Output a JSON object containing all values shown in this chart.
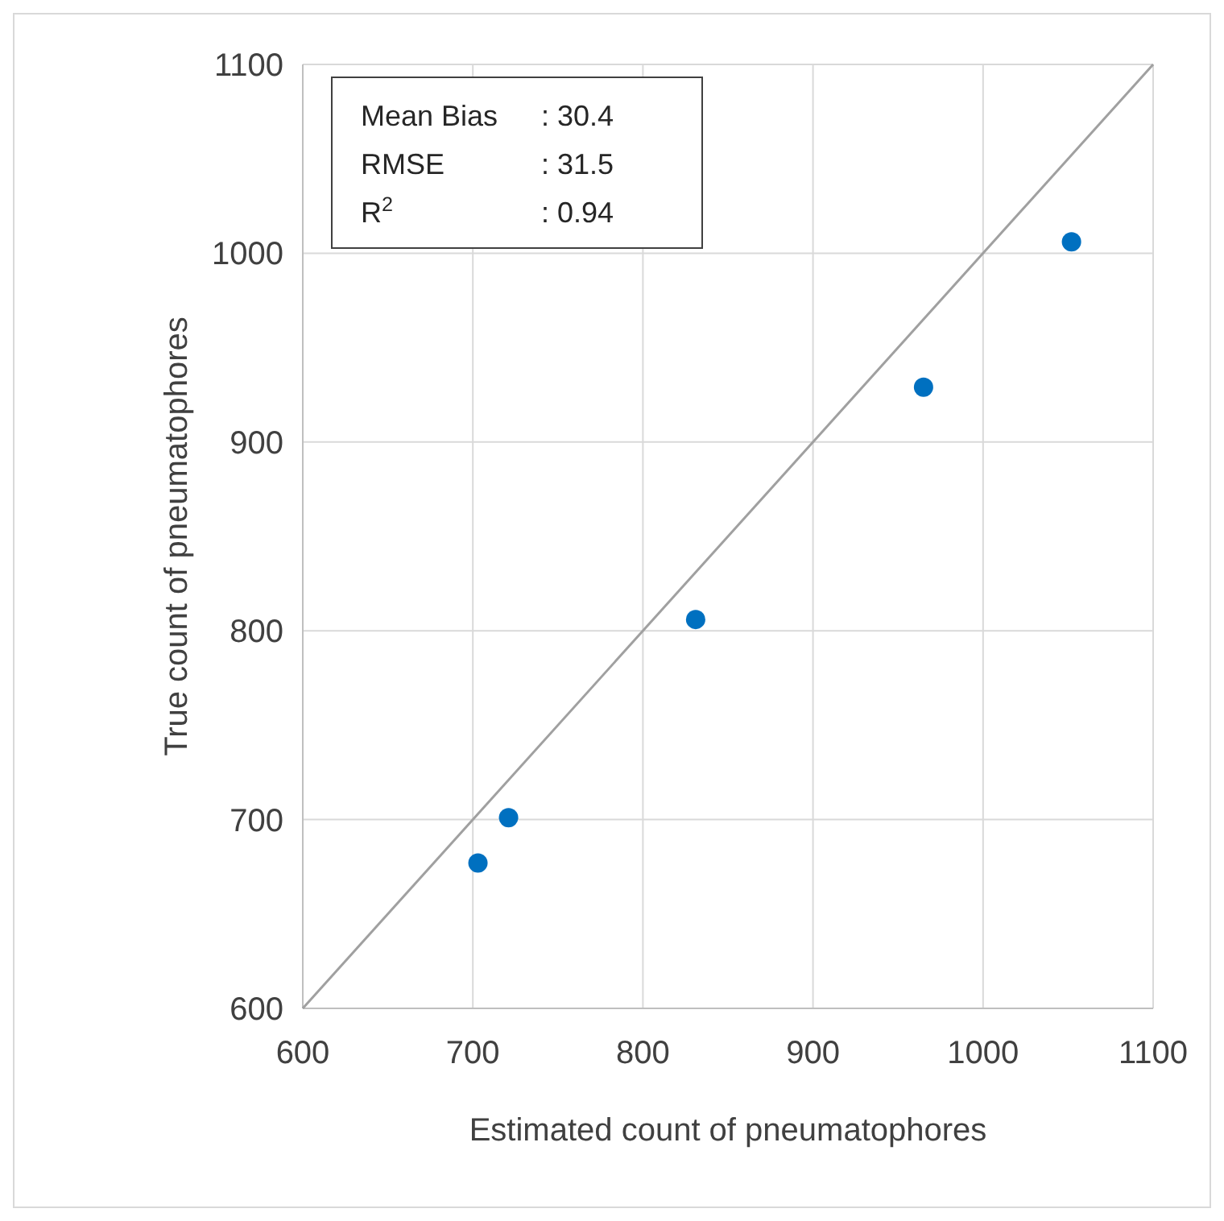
{
  "chart_data": {
    "type": "scatter",
    "xlabel": "Estimated count of pneumatophores",
    "ylabel": "True count of pneumatophores",
    "x": [
      703,
      721,
      831,
      965,
      1052
    ],
    "series": [
      {
        "color": "#0070c0",
        "marker": "circle",
        "values": [
          677,
          701,
          806,
          929,
          1006
        ]
      },
      {
        "type": "line",
        "color": "#a0a0a0",
        "marker": "none",
        "line_style": "solid",
        "x": [
          600,
          1100
        ],
        "values": [
          600,
          1100
        ]
      }
    ],
    "xlim": [
      600,
      1100
    ],
    "xticks": [
      600,
      700,
      800,
      900,
      1000,
      1100
    ],
    "ylim": [
      600,
      1100
    ],
    "yticks": [
      600,
      700,
      800,
      900,
      1000,
      1100
    ],
    "grid": true,
    "annotations": [
      "Mean Bias : 30.4",
      "RMSE : 31.5",
      "R$^{2}$ : 0.94"
    ]
  }
}
